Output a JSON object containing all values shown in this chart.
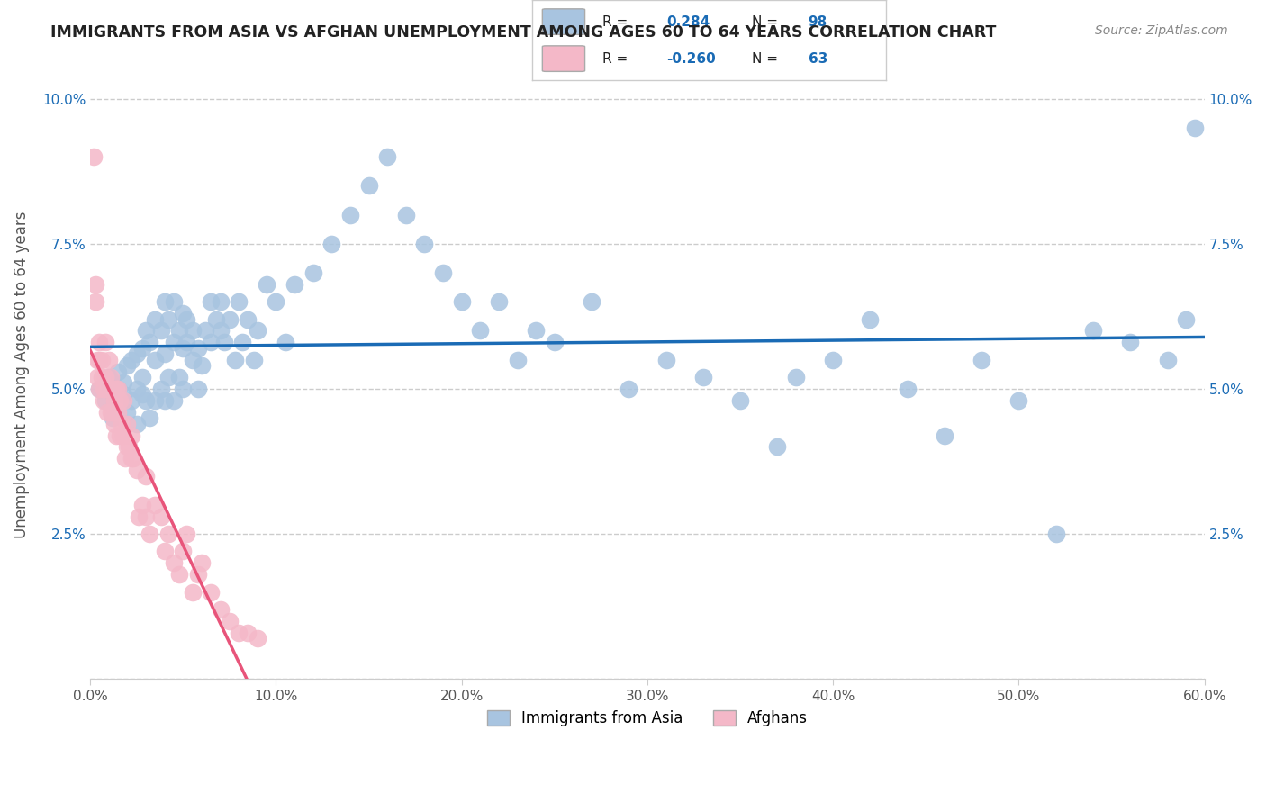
{
  "title": "IMMIGRANTS FROM ASIA VS AFGHAN UNEMPLOYMENT AMONG AGES 60 TO 64 YEARS CORRELATION CHART",
  "source": "Source: ZipAtlas.com",
  "xlabel": "",
  "ylabel": "Unemployment Among Ages 60 to 64 years",
  "xlim": [
    0.0,
    0.6
  ],
  "ylim": [
    0.0,
    0.105
  ],
  "xticks": [
    0.0,
    0.1,
    0.2,
    0.3,
    0.4,
    0.5,
    0.6
  ],
  "xticklabels": [
    "0.0%",
    "10.0%",
    "20.0%",
    "30.0%",
    "40.0%",
    "50.0%",
    "60.0%"
  ],
  "yticks": [
    0.0,
    0.025,
    0.05,
    0.075,
    0.1
  ],
  "yticklabels": [
    "",
    "2.5%",
    "5.0%",
    "7.5%",
    "10.0%"
  ],
  "grid_color": "#cccccc",
  "background_color": "#ffffff",
  "blue_color": "#a8c4e0",
  "pink_color": "#f4b8c8",
  "blue_line_color": "#1a6bb5",
  "pink_line_color": "#e8547a",
  "pink_dashed_color": "#d0a0b0",
  "R_blue": 0.284,
  "N_blue": 98,
  "R_pink": -0.26,
  "N_pink": 63,
  "legend_label_blue": "Immigrants from Asia",
  "legend_label_pink": "Afghans",
  "blue_scatter_x": [
    0.005,
    0.008,
    0.01,
    0.012,
    0.015,
    0.015,
    0.018,
    0.018,
    0.02,
    0.02,
    0.022,
    0.022,
    0.025,
    0.025,
    0.025,
    0.028,
    0.028,
    0.028,
    0.03,
    0.03,
    0.032,
    0.032,
    0.035,
    0.035,
    0.035,
    0.038,
    0.038,
    0.04,
    0.04,
    0.04,
    0.042,
    0.042,
    0.045,
    0.045,
    0.045,
    0.048,
    0.048,
    0.05,
    0.05,
    0.05,
    0.052,
    0.052,
    0.055,
    0.055,
    0.058,
    0.058,
    0.06,
    0.062,
    0.065,
    0.065,
    0.068,
    0.07,
    0.07,
    0.072,
    0.075,
    0.078,
    0.08,
    0.082,
    0.085,
    0.088,
    0.09,
    0.095,
    0.1,
    0.105,
    0.11,
    0.12,
    0.13,
    0.14,
    0.15,
    0.16,
    0.17,
    0.18,
    0.19,
    0.2,
    0.21,
    0.22,
    0.23,
    0.24,
    0.25,
    0.27,
    0.29,
    0.31,
    0.33,
    0.35,
    0.37,
    0.38,
    0.4,
    0.42,
    0.44,
    0.46,
    0.48,
    0.5,
    0.52,
    0.54,
    0.56,
    0.58,
    0.59,
    0.595
  ],
  "blue_scatter_y": [
    0.05,
    0.048,
    0.052,
    0.045,
    0.053,
    0.05,
    0.049,
    0.051,
    0.054,
    0.046,
    0.055,
    0.048,
    0.056,
    0.05,
    0.044,
    0.057,
    0.049,
    0.052,
    0.06,
    0.048,
    0.058,
    0.045,
    0.062,
    0.055,
    0.048,
    0.06,
    0.05,
    0.065,
    0.056,
    0.048,
    0.062,
    0.052,
    0.065,
    0.058,
    0.048,
    0.06,
    0.052,
    0.063,
    0.057,
    0.05,
    0.058,
    0.062,
    0.055,
    0.06,
    0.05,
    0.057,
    0.054,
    0.06,
    0.058,
    0.065,
    0.062,
    0.06,
    0.065,
    0.058,
    0.062,
    0.055,
    0.065,
    0.058,
    0.062,
    0.055,
    0.06,
    0.068,
    0.065,
    0.058,
    0.068,
    0.07,
    0.075,
    0.08,
    0.085,
    0.09,
    0.08,
    0.075,
    0.07,
    0.065,
    0.06,
    0.065,
    0.055,
    0.06,
    0.058,
    0.065,
    0.05,
    0.055,
    0.052,
    0.048,
    0.04,
    0.052,
    0.055,
    0.062,
    0.05,
    0.042,
    0.055,
    0.048,
    0.025,
    0.06,
    0.058,
    0.055,
    0.062,
    0.095
  ],
  "pink_scatter_x": [
    0.002,
    0.003,
    0.003,
    0.004,
    0.004,
    0.005,
    0.005,
    0.005,
    0.006,
    0.006,
    0.007,
    0.007,
    0.008,
    0.008,
    0.009,
    0.009,
    0.01,
    0.01,
    0.011,
    0.011,
    0.012,
    0.012,
    0.013,
    0.013,
    0.014,
    0.014,
    0.015,
    0.015,
    0.016,
    0.016,
    0.017,
    0.018,
    0.018,
    0.019,
    0.02,
    0.02,
    0.021,
    0.022,
    0.022,
    0.023,
    0.025,
    0.026,
    0.028,
    0.03,
    0.03,
    0.032,
    0.035,
    0.038,
    0.04,
    0.042,
    0.045,
    0.048,
    0.05,
    0.052,
    0.055,
    0.058,
    0.06,
    0.065,
    0.07,
    0.075,
    0.08,
    0.085,
    0.09
  ],
  "pink_scatter_y": [
    0.09,
    0.068,
    0.065,
    0.055,
    0.052,
    0.058,
    0.055,
    0.05,
    0.055,
    0.052,
    0.05,
    0.048,
    0.058,
    0.052,
    0.05,
    0.046,
    0.055,
    0.05,
    0.052,
    0.046,
    0.05,
    0.046,
    0.048,
    0.044,
    0.05,
    0.042,
    0.05,
    0.046,
    0.048,
    0.042,
    0.044,
    0.048,
    0.042,
    0.038,
    0.04,
    0.044,
    0.04,
    0.038,
    0.042,
    0.038,
    0.036,
    0.028,
    0.03,
    0.035,
    0.028,
    0.025,
    0.03,
    0.028,
    0.022,
    0.025,
    0.02,
    0.018,
    0.022,
    0.025,
    0.015,
    0.018,
    0.02,
    0.015,
    0.012,
    0.01,
    0.008,
    0.008,
    0.007
  ]
}
